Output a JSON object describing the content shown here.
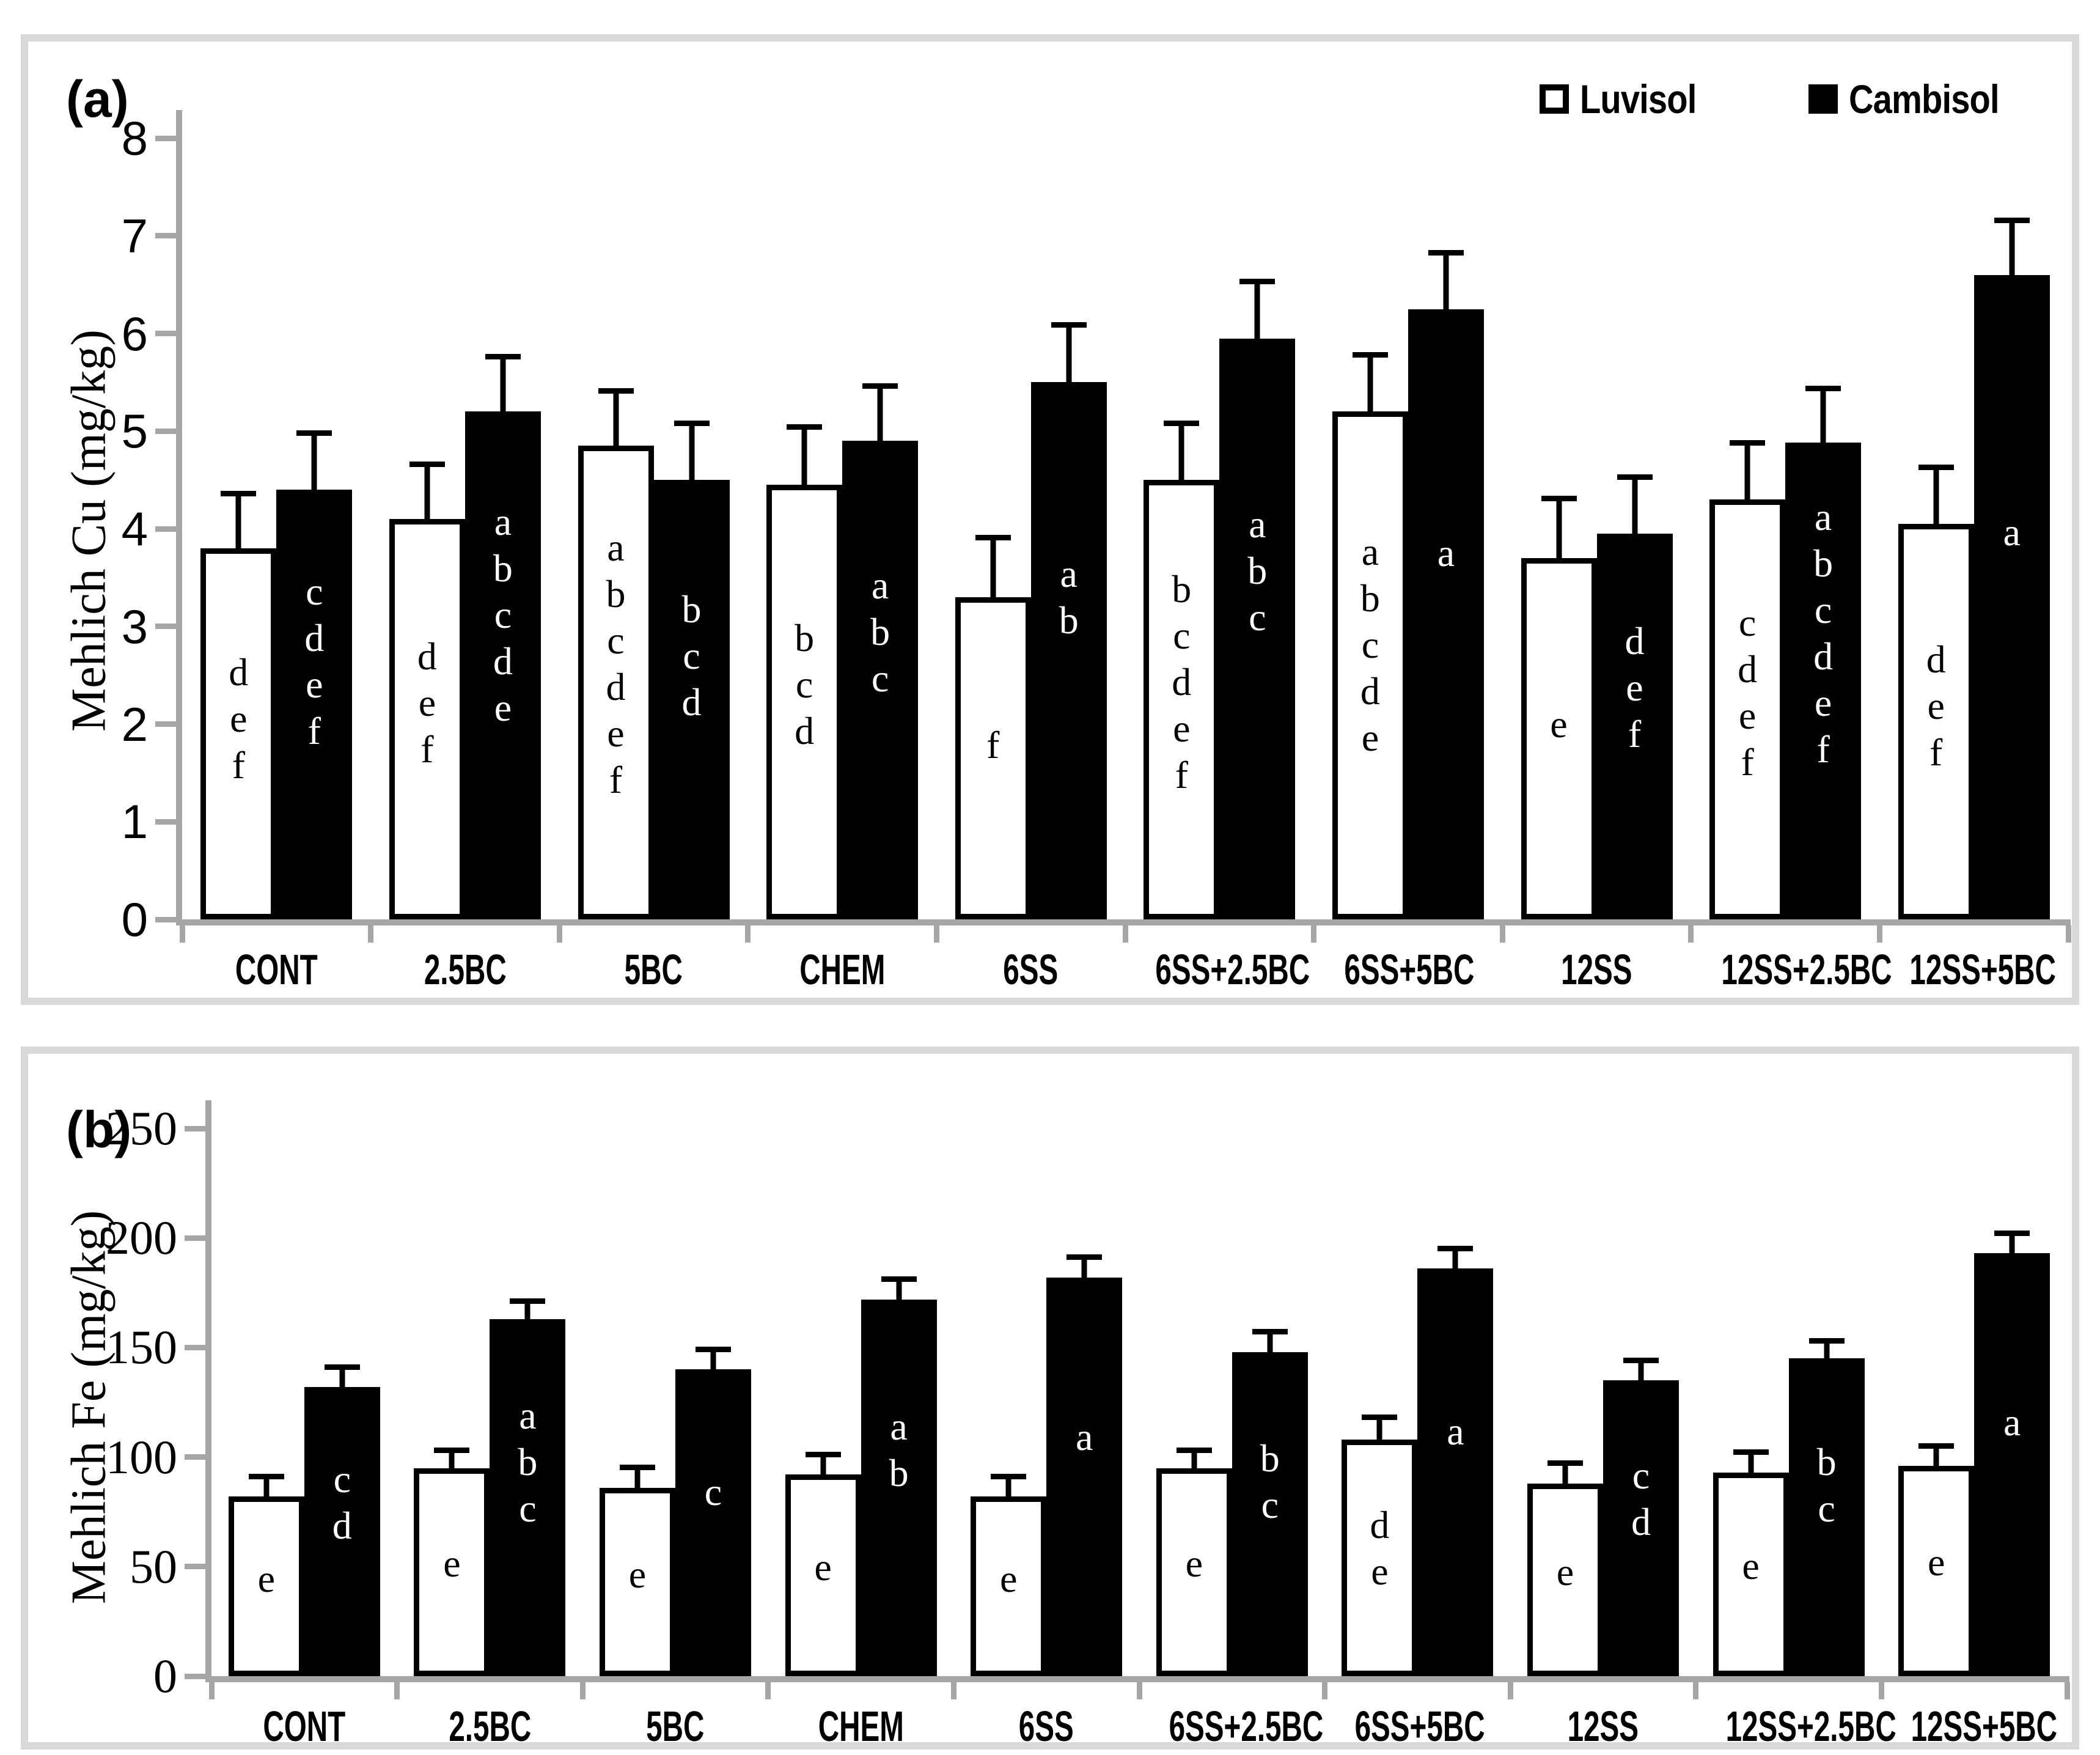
{
  "figure": {
    "colors": {
      "luvisol_fill": "#ffffff",
      "cambisol_fill": "#000000",
      "axis_gray": "#a6a6a6",
      "panel_border": "#d9d9d9"
    },
    "legend": {
      "items": [
        {
          "label": "Luvisol"
        },
        {
          "label": "Cambisol"
        }
      ]
    }
  },
  "chart_data": [
    {
      "type": "bar",
      "panel_tag": "(a)",
      "ylabel": "Mehlich Cu (mg/kg)",
      "ylim": [
        0,
        8
      ],
      "yticks": [
        0,
        1,
        2,
        3,
        4,
        5,
        6,
        7,
        8
      ],
      "grid": false,
      "legend_position": "top-right",
      "categories": [
        "CONT",
        "2.5BC",
        "5BC",
        "CHEM",
        "6SS",
        "6SS+2.5BC",
        "6SS+5BC",
        "12SS",
        "12SS+2.5BC",
        "12SS+5BC"
      ],
      "series": [
        {
          "name": "Luvisol",
          "fill": "#ffffff",
          "values": [
            3.8,
            4.1,
            4.85,
            4.45,
            3.3,
            4.5,
            5.2,
            3.7,
            4.3,
            4.05
          ],
          "errors_plus": [
            0.6,
            0.6,
            0.6,
            0.63,
            0.65,
            0.62,
            0.62,
            0.65,
            0.62,
            0.62
          ],
          "letters": [
            "def",
            "def",
            "abcdef",
            "bcd",
            "f",
            "bcdef",
            "abcde",
            "e",
            "cdef",
            "def"
          ]
        },
        {
          "name": "Cambisol",
          "fill": "#000000",
          "values": [
            4.4,
            5.2,
            4.5,
            4.9,
            5.5,
            5.95,
            6.25,
            3.95,
            4.88,
            6.6
          ],
          "errors_plus": [
            0.62,
            0.6,
            0.62,
            0.6,
            0.63,
            0.62,
            0.62,
            0.62,
            0.6,
            0.6
          ],
          "letters": [
            "cdef",
            "abcde",
            "bcd",
            "abc",
            "ab",
            "abc",
            "a",
            "def",
            "abcdef",
            "a"
          ]
        }
      ]
    },
    {
      "type": "bar",
      "panel_tag": "(b)",
      "ylabel": "Mehlich Fe (mg/kg)",
      "ylim": [
        0,
        250
      ],
      "yticks": [
        0,
        50,
        100,
        150,
        200,
        250
      ],
      "grid": false,
      "legend_position": "none",
      "categories": [
        "CONT",
        "2.5BC",
        "5BC",
        "CHEM",
        "6SS",
        "6SS+2.5BC",
        "6SS+5BC",
        "12SS",
        "12SS+2.5BC",
        "12SS+5BC"
      ],
      "series": [
        {
          "name": "Luvisol",
          "fill": "#ffffff",
          "values": [
            82,
            95,
            86,
            92,
            82,
            95,
            108,
            88,
            93,
            96
          ],
          "errors_plus": [
            11,
            10,
            11,
            11,
            11,
            10,
            12,
            11,
            11,
            11
          ],
          "letters": [
            "e",
            "e",
            "e",
            "e",
            "e",
            "e",
            "de",
            "e",
            "e",
            "e"
          ]
        },
        {
          "name": "Cambisol",
          "fill": "#000000",
          "values": [
            132,
            163,
            140,
            172,
            182,
            148,
            186,
            135,
            145,
            193
          ],
          "errors_plus": [
            11,
            10,
            11,
            11,
            11,
            11,
            11,
            11,
            10,
            11
          ],
          "letters": [
            "cd",
            "abc",
            "c",
            "ab",
            "a",
            "bc",
            "a",
            "cd",
            "bc",
            "a"
          ]
        }
      ]
    }
  ]
}
